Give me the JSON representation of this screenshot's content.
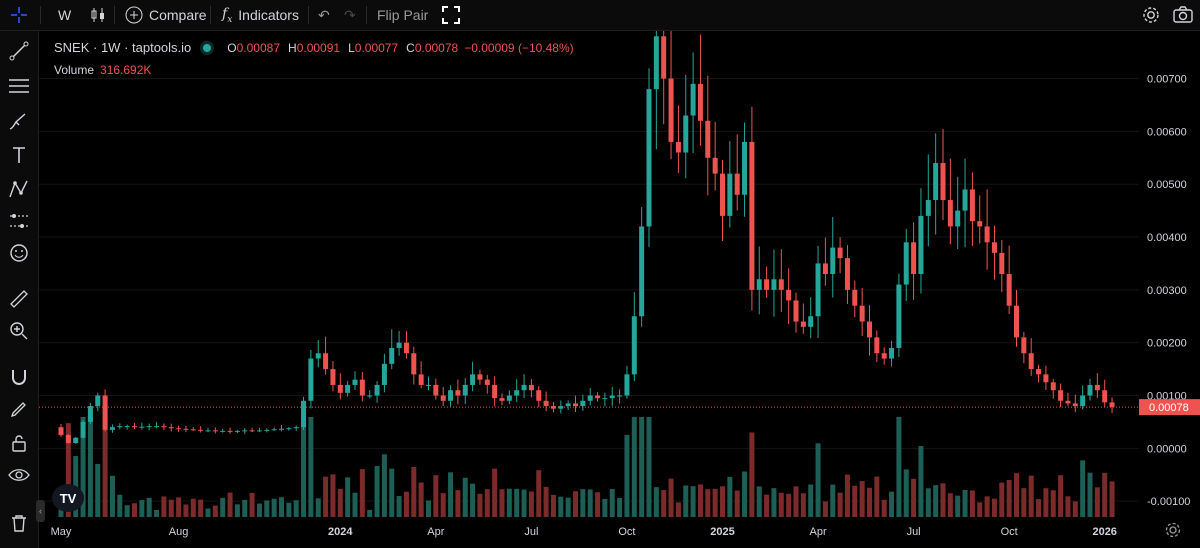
{
  "toolbar": {
    "crosshair_icon": "crosshair-icon",
    "interval": "W",
    "compare_label": "Compare",
    "indicators_label": "Indicators",
    "flip_pair_label": "Flip Pair"
  },
  "legend": {
    "symbol": "SNEK · 1W · taptools.io",
    "open_key": "O",
    "open": "0.00087",
    "high_key": "H",
    "high": "0.00091",
    "low_key": "L",
    "low": "0.00077",
    "close_key": "C",
    "close": "0.00078",
    "change": "−0.00009 (−10.48%)",
    "volume_label": "Volume",
    "volume_value": "316.692K"
  },
  "colors": {
    "up": "#26a69a",
    "down": "#ef5350",
    "up_vol": "#1d5e55",
    "down_vol": "#7a2b2a"
  },
  "left_tools": [
    "trend-line-icon",
    "horizontal-lines-icon",
    "brush-icon",
    "text-icon",
    "pattern-icon",
    "forecast-icon",
    "emoji-icon",
    "ruler-icon",
    "zoom-in-icon",
    "magnet-icon",
    "lock-draw-icon",
    "lock-icon",
    "eye-icon",
    "trash-icon"
  ],
  "chart_data": {
    "type": "candlestick",
    "symbol": "SNEK",
    "interval": "1W",
    "ylim": [
      -0.0013,
      0.0079
    ],
    "y_ticks": [
      "0.00700",
      "0.00600",
      "0.00500",
      "0.00400",
      "0.00300",
      "0.00200",
      "0.00100",
      "0.00000",
      "-0.00100"
    ],
    "y_tick_values": [
      0.007,
      0.006,
      0.005,
      0.004,
      0.003,
      0.002,
      0.001,
      0,
      -0.001
    ],
    "x_ticks": [
      "May",
      "Aug",
      "2024",
      "Apr",
      "Jul",
      "Oct",
      "2025",
      "Apr",
      "Jul",
      "Oct",
      "2026"
    ],
    "x_tick_index": [
      0,
      16,
      38,
      51,
      64,
      77,
      90,
      103,
      116,
      129,
      142
    ],
    "last_price": "0.00078",
    "last_price_value": 0.00078,
    "volume_max": 1.0,
    "closes": [
      0.00025,
      0.0001,
      0.0002,
      0.0005,
      0.0008,
      0.001,
      0.00035,
      0.0004,
      0.00042,
      0.00042,
      0.00041,
      0.00041,
      0.00042,
      0.00042,
      0.0004,
      0.00038,
      0.00037,
      0.00036,
      0.00035,
      0.00034,
      0.00034,
      0.00033,
      0.00033,
      0.00032,
      0.00033,
      0.00034,
      0.00033,
      0.00034,
      0.00035,
      0.00036,
      0.00037,
      0.00038,
      0.0004,
      0.0009,
      0.0017,
      0.0018,
      0.0015,
      0.0012,
      0.00105,
      0.0012,
      0.0013,
      0.001,
      0.001,
      0.0012,
      0.0016,
      0.0019,
      0.002,
      0.0018,
      0.0014,
      0.0012,
      0.0012,
      0.001,
      0.0009,
      0.0011,
      0.001,
      0.0012,
      0.0014,
      0.0013,
      0.0012,
      0.00095,
      0.0009,
      0.001,
      0.0011,
      0.0012,
      0.0011,
      0.0009,
      0.0008,
      0.00075,
      0.0008,
      0.00085,
      0.0008,
      0.0009,
      0.001,
      0.00095,
      0.00095,
      0.001,
      0.001,
      0.0014,
      0.0025,
      0.0042,
      0.0068,
      0.0078,
      0.007,
      0.0058,
      0.0056,
      0.0063,
      0.0069,
      0.0062,
      0.0055,
      0.0052,
      0.0044,
      0.0052,
      0.0048,
      0.0058,
      0.003,
      0.0032,
      0.003,
      0.0032,
      0.003,
      0.0028,
      0.0024,
      0.0023,
      0.0025,
      0.0035,
      0.0033,
      0.0038,
      0.0036,
      0.003,
      0.0027,
      0.0024,
      0.0021,
      0.0018,
      0.0017,
      0.0019,
      0.0031,
      0.0039,
      0.0033,
      0.0044,
      0.0047,
      0.0054,
      0.0047,
      0.0042,
      0.0045,
      0.0049,
      0.0043,
      0.0042,
      0.0039,
      0.0037,
      0.0033,
      0.0027,
      0.0021,
      0.0018,
      0.0015,
      0.0014,
      0.00125,
      0.0011,
      0.0009,
      0.00085,
      0.0008,
      0.001,
      0.0012,
      0.0011,
      0.00087,
      0.00078
    ]
  }
}
